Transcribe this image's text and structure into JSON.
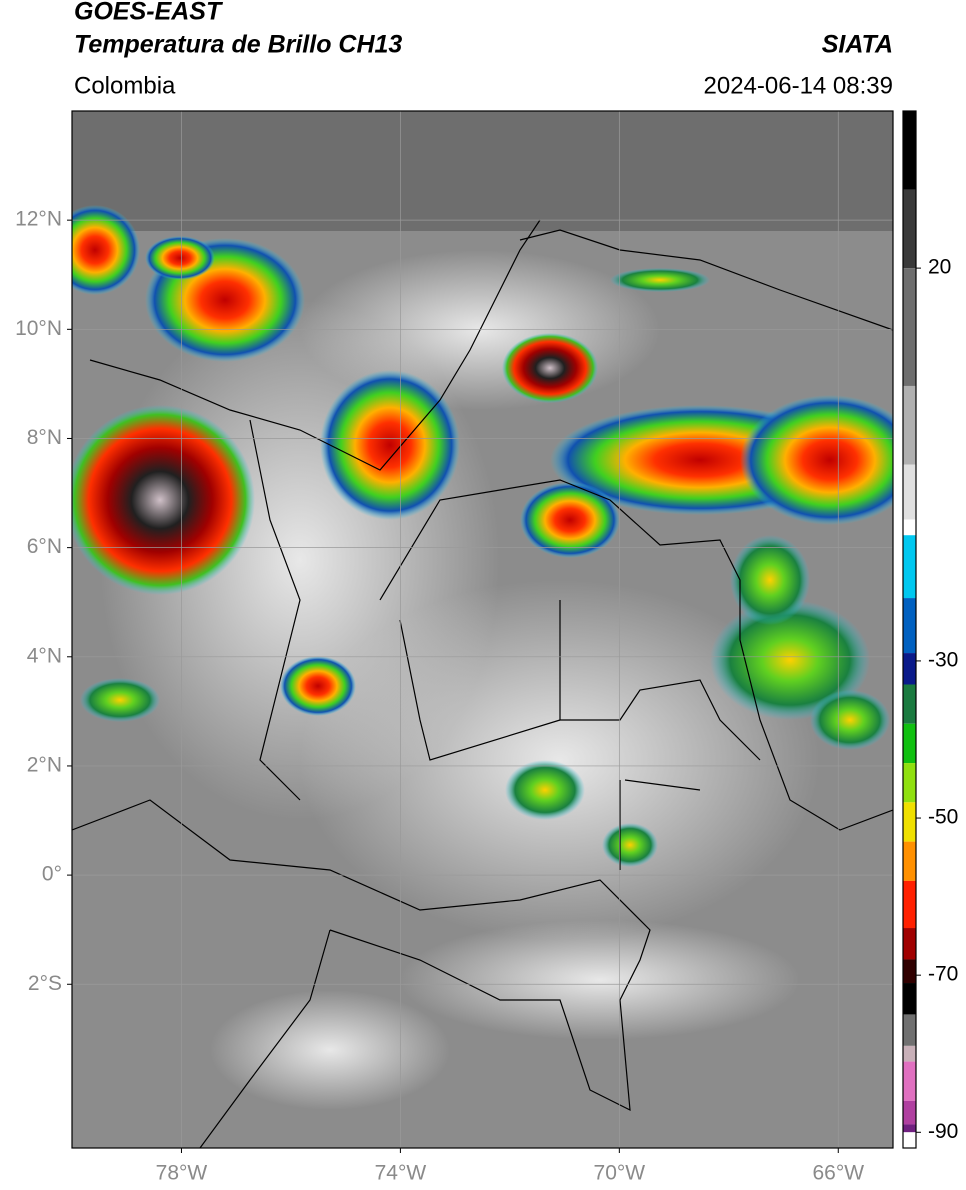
{
  "header": {
    "source": "GOES-EAST",
    "product": "Temperatura de Brillo CH13",
    "agency": "SIATA",
    "region": "Colombia",
    "datetime": "2024-06-14 08:39"
  },
  "map": {
    "xlim": [
      -80,
      -65
    ],
    "ylim": [
      -5,
      14
    ],
    "xticks": [
      {
        "value": -78,
        "label": "78°W"
      },
      {
        "value": -74,
        "label": "74°W"
      },
      {
        "value": -70,
        "label": "70°W"
      },
      {
        "value": -66,
        "label": "66°W"
      }
    ],
    "yticks": [
      {
        "value": 12,
        "label": "12°N"
      },
      {
        "value": 10,
        "label": "10°N"
      },
      {
        "value": 8,
        "label": "8°N"
      },
      {
        "value": 6,
        "label": "6°N"
      },
      {
        "value": 4,
        "label": "4°N"
      },
      {
        "value": 2,
        "label": "2°N"
      },
      {
        "value": 0,
        "label": "0°"
      },
      {
        "value": -2,
        "label": "2°S"
      }
    ],
    "grid": true
  },
  "colorbar": {
    "clim": [
      -92,
      40
    ],
    "ticks": [
      20,
      -30,
      -50,
      -70,
      -90
    ],
    "stops": [
      {
        "value": 40,
        "color": "#000000"
      },
      {
        "value": 30,
        "color": "#3a3a3a"
      },
      {
        "value": 20,
        "color": "#6e6e6e"
      },
      {
        "value": 5,
        "color": "#b0b0b0"
      },
      {
        "value": -5,
        "color": "#e0e0e0"
      },
      {
        "value": -12,
        "color": "#ffffff"
      },
      {
        "value": -14,
        "color": "#00c8f0"
      },
      {
        "value": -22,
        "color": "#0060c0"
      },
      {
        "value": -29,
        "color": "#0a1a8a"
      },
      {
        "value": -33,
        "color": "#1a7a40"
      },
      {
        "value": -38,
        "color": "#10c010"
      },
      {
        "value": -43,
        "color": "#90e010"
      },
      {
        "value": -48,
        "color": "#f0e000"
      },
      {
        "value": -53,
        "color": "#ff9000"
      },
      {
        "value": -58,
        "color": "#ff2000"
      },
      {
        "value": -64,
        "color": "#a00000"
      },
      {
        "value": -68,
        "color": "#300000"
      },
      {
        "value": -71,
        "color": "#000000"
      },
      {
        "value": -75,
        "color": "#707070"
      },
      {
        "value": -79,
        "color": "#c8b0b8"
      },
      {
        "value": -81,
        "color": "#e070c0"
      },
      {
        "value": -86,
        "color": "#b040a0"
      },
      {
        "value": -89,
        "color": "#702080"
      },
      {
        "value": -90,
        "color": "#ffffff"
      }
    ]
  }
}
